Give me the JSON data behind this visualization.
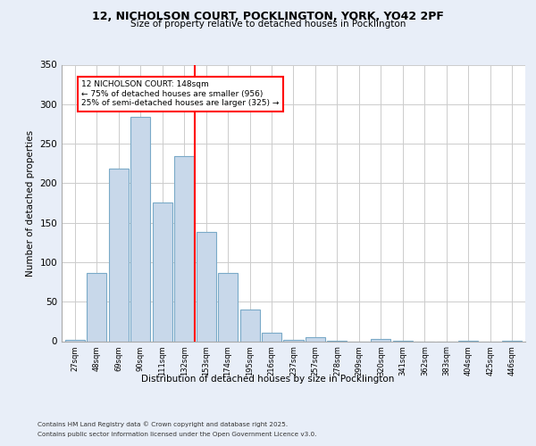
{
  "title_line1": "12, NICHOLSON COURT, POCKLINGTON, YORK, YO42 2PF",
  "title_line2": "Size of property relative to detached houses in Pocklington",
  "xlabel": "Distribution of detached houses by size in Pocklington",
  "ylabel": "Number of detached properties",
  "bar_labels": [
    "27sqm",
    "48sqm",
    "69sqm",
    "90sqm",
    "111sqm",
    "132sqm",
    "153sqm",
    "174sqm",
    "195sqm",
    "216sqm",
    "237sqm",
    "257sqm",
    "278sqm",
    "299sqm",
    "320sqm",
    "341sqm",
    "362sqm",
    "383sqm",
    "404sqm",
    "425sqm",
    "446sqm"
  ],
  "bar_values": [
    2,
    86,
    218,
    284,
    176,
    234,
    138,
    86,
    40,
    11,
    2,
    5,
    1,
    0,
    3,
    1,
    0,
    0,
    1,
    0,
    1
  ],
  "bar_color": "#c8d8ea",
  "bar_edge_color": "#7aaac8",
  "vline_color": "red",
  "annotation_text": "12 NICHOLSON COURT: 148sqm\n← 75% of detached houses are smaller (956)\n25% of semi-detached houses are larger (325) →",
  "annotation_box_color": "white",
  "annotation_box_edge_color": "red",
  "ylim": [
    0,
    350
  ],
  "yticks": [
    0,
    50,
    100,
    150,
    200,
    250,
    300,
    350
  ],
  "footer_line1": "Contains HM Land Registry data © Crown copyright and database right 2025.",
  "footer_line2": "Contains public sector information licensed under the Open Government Licence v3.0.",
  "bg_color": "#e8eef8",
  "plot_bg_color": "#ffffff",
  "grid_color": "#cccccc",
  "vline_x": 5.5
}
